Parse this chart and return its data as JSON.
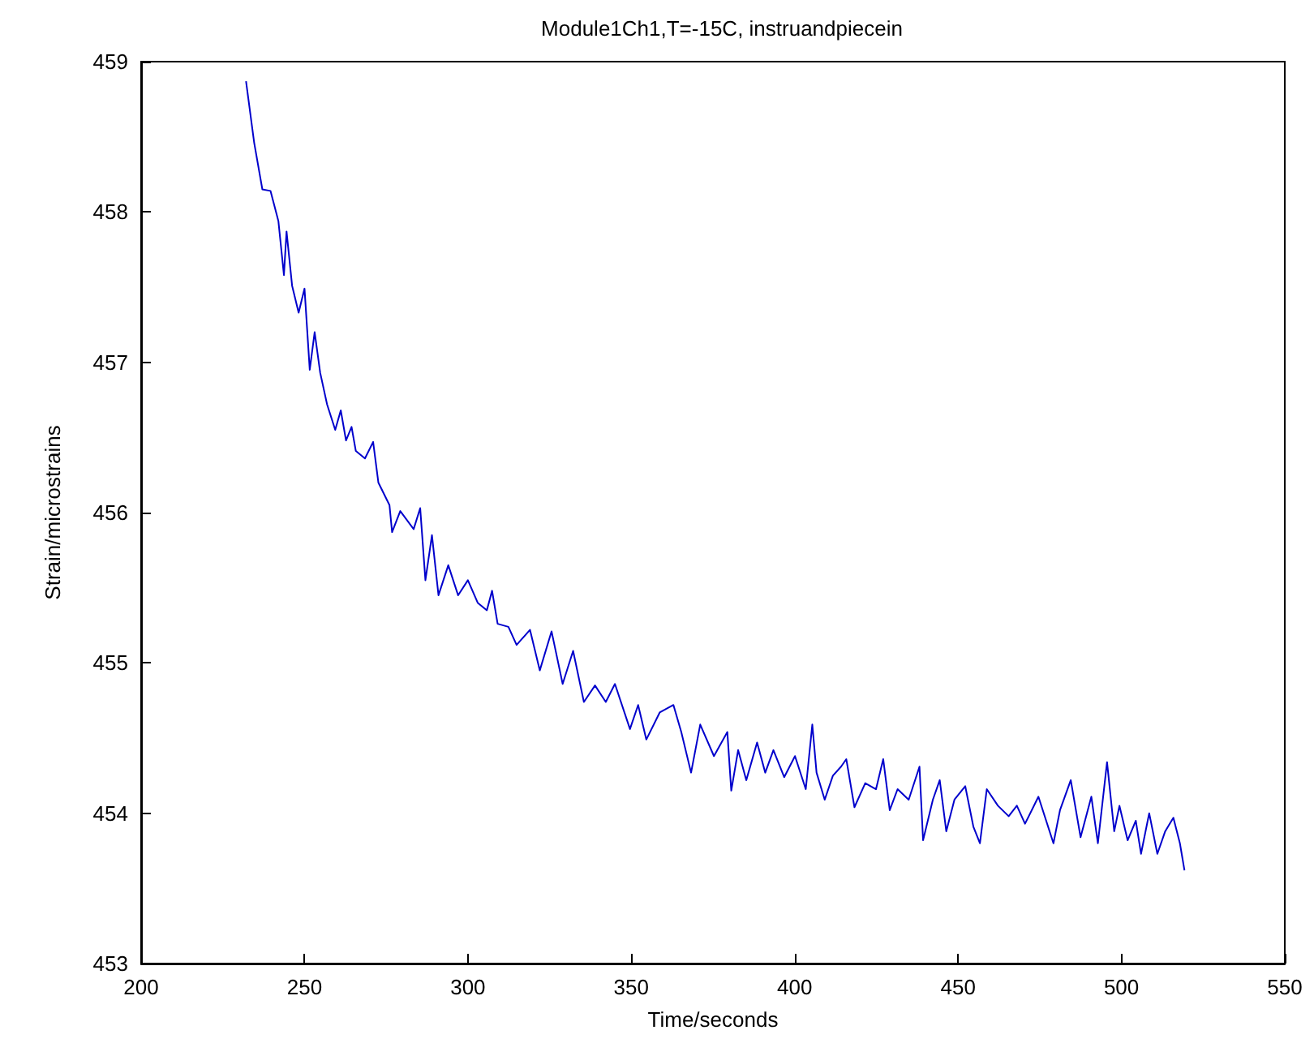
{
  "chart_data": {
    "type": "line",
    "title": "Module1Ch1,T=-15C, instruandpiecein",
    "xlabel": "Time/seconds",
    "ylabel": "Strain/microstrains",
    "xlim": [
      200,
      550
    ],
    "xticks": [
      200,
      250,
      300,
      350,
      400,
      450,
      500,
      550
    ],
    "ylim": [
      453,
      459
    ],
    "yticks": [
      453,
      454,
      455,
      456,
      457,
      458,
      459
    ],
    "grid": false,
    "marker": "none",
    "line_style": "solid",
    "series": [
      {
        "color": "#0000cc",
        "x": [
          232.1,
          234.6,
          237.1,
          239.6,
          242.0,
          243.7,
          244.5,
          246.2,
          248.2,
          250.0,
          251.6,
          253.1,
          254.8,
          256.9,
          259.4,
          261.1,
          262.7,
          264.4,
          265.7,
          268.5,
          271.0,
          272.6,
          276.0,
          276.8,
          279.3,
          283.4,
          285.4,
          287,
          289,
          291,
          294,
          297,
          300,
          303,
          305.8,
          307.4,
          309.1,
          312.4,
          314.9,
          319.0,
          322.0,
          325.6,
          329.0,
          332.2,
          335.5,
          338.9,
          342.2,
          345.0,
          349.6,
          352.1,
          354.6,
          358.7,
          362.9,
          365.3,
          368.3,
          371.1,
          375.3,
          379.4,
          380.6,
          382.7,
          385.2,
          388.5,
          391.0,
          393.5,
          396.8,
          400.1,
          403.4,
          405.4,
          406.7,
          409.2,
          411.7,
          414.2,
          415.8,
          418.3,
          421.6,
          424.9,
          427.1,
          429.1,
          431.5,
          434.9,
          438.2,
          439.3,
          442.3,
          444.4,
          446.4,
          448.9,
          452.2,
          454.7,
          456.7,
          458.8,
          462.2,
          465.5,
          468.0,
          470.5,
          474.6,
          479.2,
          481.2,
          484.5,
          487.5,
          490.8,
          492.8,
          495.6,
          497.8,
          499.4,
          501.9,
          504.4,
          506.0,
          508.5,
          511.0,
          513.4,
          515.9,
          517.9,
          519.3
        ],
        "values": [
          458.87,
          458.46,
          458.15,
          458.14,
          457.94,
          457.58,
          457.87,
          457.51,
          457.33,
          457.49,
          456.95,
          457.2,
          456.93,
          456.72,
          456.55,
          456.68,
          456.48,
          456.57,
          456.41,
          456.36,
          456.47,
          456.2,
          456.05,
          455.87,
          456.01,
          455.89,
          456.03,
          455.55,
          455.85,
          455.45,
          455.65,
          455.45,
          455.55,
          455.4,
          455.35,
          455.48,
          455.26,
          455.24,
          455.12,
          455.22,
          454.95,
          455.21,
          454.86,
          455.08,
          454.74,
          454.85,
          454.74,
          454.86,
          454.56,
          454.72,
          454.49,
          454.67,
          454.72,
          454.54,
          454.27,
          454.59,
          454.38,
          454.54,
          454.15,
          454.42,
          454.22,
          454.47,
          454.27,
          454.42,
          454.24,
          454.38,
          454.16,
          454.59,
          454.27,
          454.09,
          454.25,
          454.31,
          454.36,
          454.04,
          454.2,
          454.16,
          454.36,
          454.02,
          454.16,
          454.09,
          454.31,
          453.82,
          454.09,
          454.22,
          453.88,
          454.09,
          454.18,
          453.91,
          453.8,
          454.16,
          454.05,
          453.98,
          454.05,
          453.93,
          454.11,
          453.8,
          454.02,
          454.22,
          453.84,
          454.11,
          453.8,
          454.34,
          453.88,
          454.05,
          453.82,
          453.95,
          453.73,
          454,
          453.73,
          453.88,
          453.97,
          453.8,
          453.62
        ]
      }
    ]
  }
}
